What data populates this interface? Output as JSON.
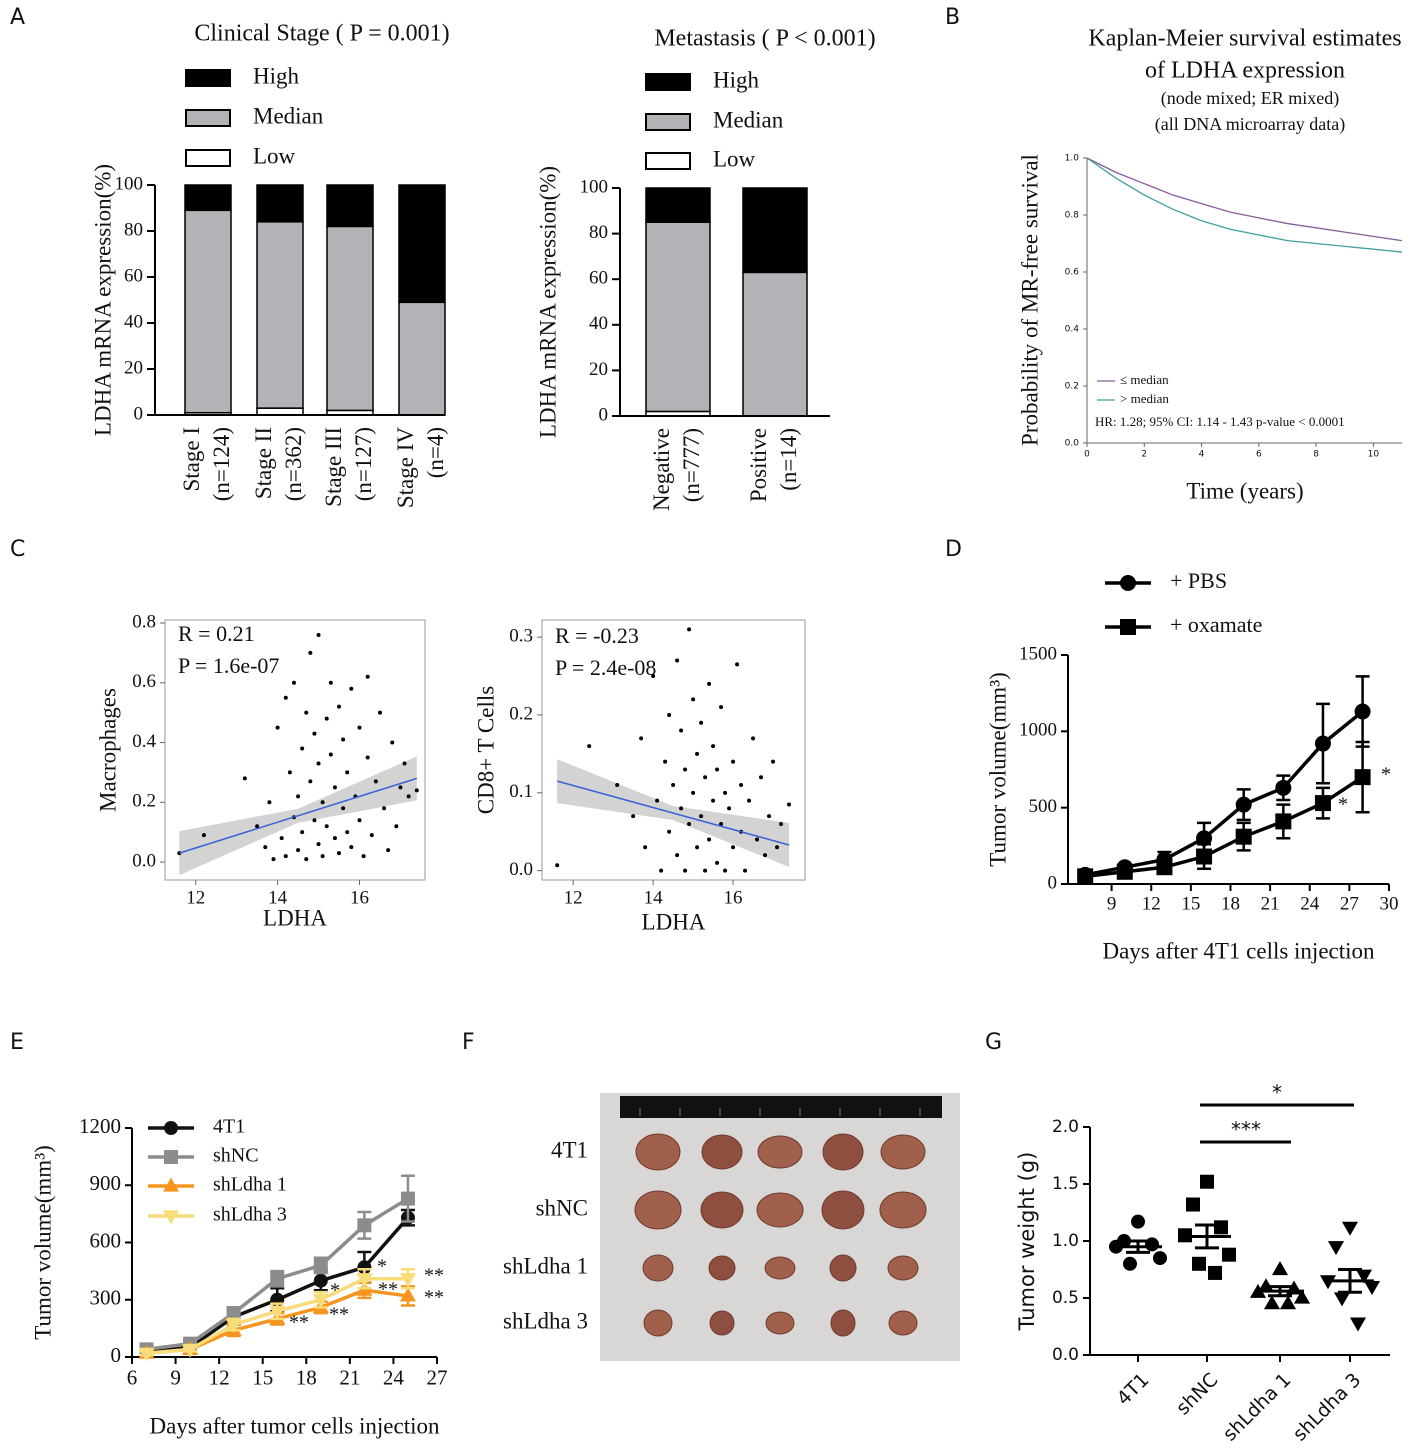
{
  "panel_labels": [
    "A",
    "B",
    "C",
    "D",
    "E",
    "F",
    "G"
  ],
  "photo": {
    "row_labels": [
      "4T1",
      "shNC",
      "shLdha 1",
      "shLdha 3"
    ]
  },
  "chart_data": [
    {
      "type": "bar",
      "title": "Clinical Stage ( P = 0.001)",
      "y_label": "LDHA mRNA expression(%)",
      "categories": [
        "Stage I\n(n=124)",
        "Stage II\n(n=362)",
        "Stage III\n(n=127)",
        "Stage IV\n(n=4)"
      ],
      "series": [
        {
          "name": "Low",
          "color": "#ffffff",
          "values": [
            1,
            3,
            2,
            0
          ]
        },
        {
          "name": "Median",
          "color": "#b3b3b7",
          "values": [
            88,
            81,
            80,
            49
          ]
        },
        {
          "name": "High",
          "color": "#000000",
          "values": [
            11,
            16,
            18,
            51
          ]
        }
      ],
      "ylim": [
        0,
        100
      ],
      "yticks": [
        0,
        20,
        40,
        60,
        80,
        100
      ],
      "stacked": true
    },
    {
      "type": "bar",
      "title": "Metastasis ( P < 0.001)",
      "y_label": "LDHA mRNA expression(%)",
      "categories": [
        "Negative\n(n=777)",
        "Positive\n(n=14)"
      ],
      "series": [
        {
          "name": "Low",
          "color": "#ffffff",
          "values": [
            2,
            0
          ]
        },
        {
          "name": "Median",
          "color": "#b3b3b7",
          "values": [
            83,
            63
          ]
        },
        {
          "name": "High",
          "color": "#000000",
          "values": [
            15,
            37
          ]
        }
      ],
      "ylim": [
        0,
        100
      ],
      "yticks": [
        0,
        20,
        40,
        60,
        80,
        100
      ],
      "stacked": true
    },
    {
      "type": "line",
      "title": [
        "Kaplan-Meier survival estimates",
        "of LDHA expression"
      ],
      "subtitle": [
        "(node mixed; ER mixed)",
        "(all DNA microarray data)"
      ],
      "x_label": "Time (years)",
      "y_label": "Probability of MR-free survival",
      "annotation": "HR: 1.28; 95% CI: 1.14 - 1.43 p-value < 0.0001",
      "x": [
        0,
        1,
        2,
        3,
        4,
        5,
        6,
        7,
        8,
        9,
        10,
        11
      ],
      "series": [
        {
          "name": "≤ median",
          "color": "#8a5c9c",
          "values": [
            1.0,
            0.95,
            0.91,
            0.87,
            0.84,
            0.81,
            0.79,
            0.77,
            0.755,
            0.74,
            0.725,
            0.71
          ]
        },
        {
          "name": "> median",
          "color": "#3f9e9e",
          "values": [
            1.0,
            0.93,
            0.87,
            0.82,
            0.78,
            0.75,
            0.73,
            0.71,
            0.7,
            0.69,
            0.68,
            0.67
          ]
        }
      ],
      "xlim": [
        0,
        11
      ],
      "xticks": [
        0,
        2,
        4,
        6,
        8,
        10
      ],
      "ylim": [
        0,
        1
      ],
      "yticks": [
        {
          "value": 0,
          "label": "0.0"
        },
        0.2,
        0.4,
        0.6,
        0.8,
        {
          "value": 1,
          "label": "1.0"
        }
      ],
      "legend": "lower left"
    },
    {
      "type": "scatter",
      "x_label": "LDHA",
      "y_label": "Macrophages",
      "annotations": [
        "R = 0.21",
        "P = 1.6e-07"
      ],
      "x": [
        11.6,
        12.2,
        13.2,
        13.5,
        13.7,
        13.8,
        13.9,
        14.0,
        14.1,
        14.2,
        14.2,
        14.3,
        14.4,
        14.4,
        14.5,
        14.5,
        14.6,
        14.6,
        14.7,
        14.7,
        14.8,
        14.8,
        14.9,
        14.9,
        15.0,
        15.0,
        15.0,
        15.1,
        15.1,
        15.2,
        15.2,
        15.3,
        15.3,
        15.4,
        15.4,
        15.5,
        15.5,
        15.6,
        15.6,
        15.7,
        15.7,
        15.8,
        15.8,
        15.9,
        16.0,
        16.0,
        16.1,
        16.2,
        16.2,
        16.3,
        16.4,
        16.5,
        16.6,
        16.7,
        16.8,
        16.9,
        17.0,
        17.1,
        17.2,
        17.4
      ],
      "values": [
        0.03,
        0.09,
        0.28,
        0.12,
        0.05,
        0.2,
        0.01,
        0.45,
        0.08,
        0.55,
        0.02,
        0.3,
        0.15,
        0.6,
        0.04,
        0.22,
        0.38,
        0.1,
        0.5,
        0.01,
        0.27,
        0.7,
        0.14,
        0.43,
        0.06,
        0.33,
        0.76,
        0.2,
        0.02,
        0.48,
        0.12,
        0.36,
        0.6,
        0.08,
        0.25,
        0.52,
        0.03,
        0.18,
        0.41,
        0.3,
        0.1,
        0.58,
        0.05,
        0.22,
        0.45,
        0.14,
        0.02,
        0.35,
        0.62,
        0.09,
        0.27,
        0.5,
        0.18,
        0.04,
        0.4,
        0.12,
        0.25,
        0.33,
        0.22,
        0.24
      ],
      "trend": {
        "x": [
          11.6,
          17.4
        ],
        "y": [
          0.03,
          0.28
        ],
        "color": "#3a62d6"
      },
      "xlim": [
        11.25,
        17.6
      ],
      "xticks": [
        12,
        14,
        16
      ],
      "ylim": [
        -0.06,
        0.81
      ],
      "yticks": [
        {
          "value": 0,
          "label": "0.0"
        },
        0.2,
        0.4,
        0.6,
        0.8
      ]
    },
    {
      "type": "scatter",
      "x_label": "LDHA",
      "y_label": "CD8+ T Cells",
      "annotations": [
        "R = -0.23",
        "P = 2.4e-08"
      ],
      "x": [
        11.6,
        12.4,
        13.1,
        13.5,
        13.7,
        13.8,
        14.0,
        14.1,
        14.2,
        14.3,
        14.4,
        14.4,
        14.5,
        14.6,
        14.6,
        14.7,
        14.7,
        14.8,
        14.8,
        14.9,
        14.9,
        15.0,
        15.0,
        15.1,
        15.1,
        15.2,
        15.2,
        15.3,
        15.3,
        15.4,
        15.4,
        15.5,
        15.5,
        15.6,
        15.6,
        15.7,
        15.7,
        15.8,
        15.8,
        15.9,
        16.0,
        16.0,
        16.1,
        16.2,
        16.2,
        16.3,
        16.4,
        16.5,
        16.6,
        16.7,
        16.8,
        16.9,
        17.0,
        17.1,
        17.2,
        17.4
      ],
      "values": [
        0.007,
        0.16,
        0.11,
        0.07,
        0.17,
        0.03,
        0.25,
        0.09,
        0.0,
        0.14,
        0.2,
        0.05,
        0.11,
        0.02,
        0.27,
        0.08,
        0.18,
        0.13,
        0.0,
        0.31,
        0.06,
        0.22,
        0.1,
        0.03,
        0.15,
        0.07,
        0.19,
        0.0,
        0.12,
        0.24,
        0.04,
        0.09,
        0.16,
        0.01,
        0.13,
        0.06,
        0.21,
        0.1,
        0.0,
        0.08,
        0.14,
        0.03,
        0.265,
        0.05,
        0.11,
        0.0,
        0.09,
        0.17,
        0.04,
        0.12,
        0.02,
        0.07,
        0.14,
        0.03,
        0.06,
        0.085
      ],
      "trend": {
        "x": [
          11.6,
          17.4
        ],
        "y": [
          0.115,
          0.033
        ],
        "color": "#3a62d6"
      },
      "xlim": [
        11.22,
        17.8
      ],
      "xticks": [
        12,
        14,
        16
      ],
      "ylim": [
        -0.012,
        0.322
      ],
      "yticks": [
        {
          "value": 0,
          "label": "0.0"
        },
        0.1,
        0.2,
        0.3
      ]
    },
    {
      "type": "errorline",
      "x_label": "Days after 4T1 cells injection",
      "y_label": "Tumor volume(mm³)",
      "x": [
        7,
        10,
        13,
        16,
        19,
        22,
        25,
        28
      ],
      "series": [
        {
          "name": "+ PBS",
          "color": "#000000",
          "marker": "circle",
          "values": [
            60,
            110,
            160,
            300,
            520,
            630,
            920,
            1130
          ],
          "errors": [
            20,
            20,
            50,
            100,
            100,
            80,
            260,
            230
          ]
        },
        {
          "name": "+ oxamate",
          "color": "#000000",
          "marker": "square",
          "values": [
            50,
            80,
            110,
            180,
            310,
            410,
            530,
            700
          ],
          "errors": [
            20,
            20,
            40,
            80,
            90,
            110,
            100,
            230
          ]
        }
      ],
      "annotations": [
        "*",
        "*"
      ],
      "xlim": [
        5.7,
        30
      ],
      "xticks": [
        9,
        12,
        15,
        18,
        21,
        24,
        27,
        30
      ],
      "ylim": [
        0,
        1500
      ],
      "yticks": [
        0,
        500,
        1000,
        1500
      ]
    },
    {
      "type": "errorline",
      "x_label": "Days after tumor cells injection",
      "y_label": "Tumor volume(mm³)",
      "x": [
        7,
        10,
        13,
        16,
        19,
        22,
        25
      ],
      "series": [
        {
          "name": "4T1",
          "color": "#111111",
          "marker": "circle",
          "values": [
            30,
            50,
            210,
            300,
            400,
            470,
            730
          ],
          "errors": [
            20,
            20,
            40,
            60,
            50,
            80,
            40
          ]
        },
        {
          "name": "shNC",
          "color": "#8c8c8c",
          "marker": "square",
          "values": [
            40,
            70,
            230,
            410,
            480,
            690,
            830
          ],
          "errors": [
            20,
            20,
            30,
            40,
            40,
            70,
            120
          ]
        },
        {
          "name": "shLdha 1",
          "color": "#f5951f",
          "marker": "triangle",
          "values": [
            20,
            40,
            140,
            200,
            260,
            350,
            320
          ],
          "errors": [
            10,
            10,
            30,
            30,
            30,
            40,
            50
          ]
        },
        {
          "name": "shLdha 3",
          "color": "#f8dc7a",
          "marker": "triangle-down",
          "values": [
            20,
            40,
            170,
            240,
            300,
            410,
            410
          ],
          "errors": [
            10,
            10,
            30,
            40,
            40,
            50,
            50
          ]
        }
      ],
      "annotations": [
        "**",
        "*",
        "**",
        "*",
        "**",
        "**",
        "**"
      ],
      "xlim": [
        6,
        27
      ],
      "xticks": [
        6,
        9,
        12,
        15,
        18,
        21,
        24,
        27
      ],
      "ylim": [
        0,
        1200
      ],
      "yticks": [
        0,
        300,
        600,
        900,
        1200
      ]
    },
    {
      "type": "dot",
      "y_label": "Tumor weight (g)",
      "categories": [
        "4T1",
        "shNC",
        "shLdha 1",
        "shLdha 3"
      ],
      "markers": [
        "circle",
        "square",
        "triangle",
        "triangle-down"
      ],
      "points": [
        [
          1.17,
          1.0,
          0.97,
          0.95,
          0.85,
          0.8
        ],
        [
          1.52,
          1.32,
          1.12,
          1.05,
          0.88,
          0.8,
          0.72
        ],
        [
          0.75,
          0.6,
          0.58,
          0.55,
          0.5,
          0.45,
          0.45
        ],
        [
          1.12,
          0.95,
          0.7,
          0.65,
          0.6,
          0.5,
          0.28
        ]
      ],
      "mean": [
        0.95,
        1.04,
        0.56,
        0.65
      ],
      "sem": [
        0.05,
        0.1,
        0.04,
        0.1
      ],
      "annotations": [
        "*",
        "***"
      ],
      "ylim": [
        0,
        2
      ],
      "yticks": [
        {
          "value": 0,
          "label": "0.0"
        },
        0.5,
        {
          "value": 1,
          "label": "1.0"
        },
        1.5,
        {
          "value": 2,
          "label": "2.0"
        }
      ]
    }
  ]
}
